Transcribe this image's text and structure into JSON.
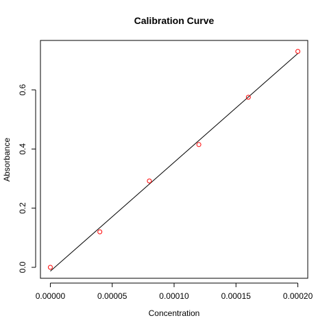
{
  "chart_data": {
    "type": "scatter",
    "title": "Calibration Curve",
    "xlabel": "Concentration",
    "ylabel": "Absorbance",
    "xlim": [
      -8e-06,
      0.000208
    ],
    "ylim": [
      -0.037,
      0.767
    ],
    "x_ticks": [
      0.0,
      5e-05,
      0.0001,
      0.00015,
      0.0002
    ],
    "x_tick_labels": [
      "0.00000",
      "0.00005",
      "0.00010",
      "0.00015",
      "0.00020"
    ],
    "y_ticks": [
      0.0,
      0.2,
      0.4,
      0.6
    ],
    "y_tick_labels": [
      "0.0",
      "0.2",
      "0.4",
      "0.6"
    ],
    "grid": false,
    "legend": "none",
    "series": [
      {
        "x": [
          0.0,
          4e-05,
          8e-05,
          0.00012,
          0.00016,
          0.0002
        ],
        "y": [
          0.0,
          0.12,
          0.292,
          0.415,
          0.575,
          0.73
        ],
        "marker": "open-circle",
        "color": "#ff0000"
      }
    ],
    "fit_line": {
      "x": [
        0.0,
        0.0002
      ],
      "y": [
        -0.013,
        0.723
      ],
      "color": "#000000"
    }
  }
}
